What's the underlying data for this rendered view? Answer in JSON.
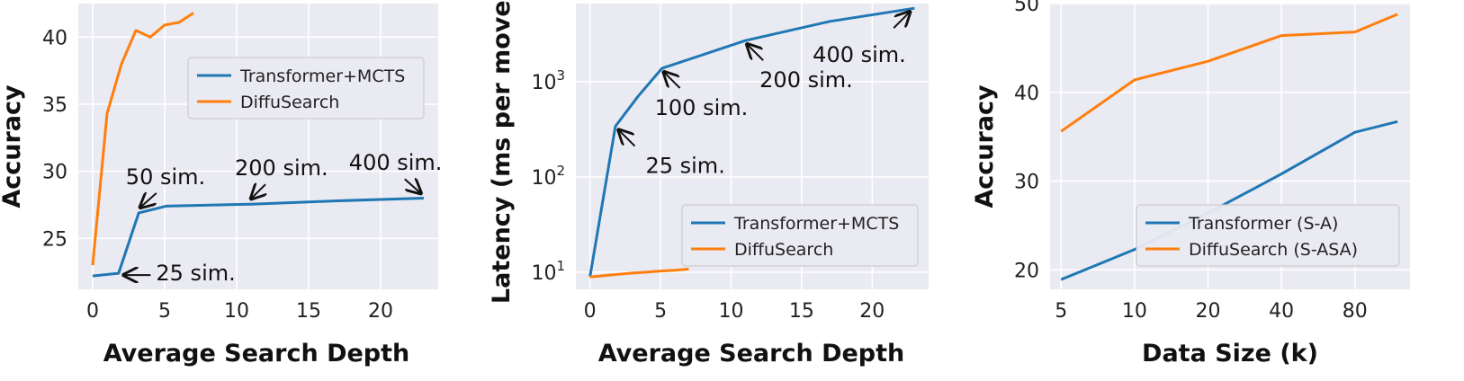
{
  "colors": {
    "blue": "#1f77b4",
    "orange": "#ff7f0e"
  },
  "chart_data": [
    {
      "type": "line",
      "xlabel": "Average Search Depth",
      "ylabel": "Accuracy",
      "xlim": [
        -1,
        24
      ],
      "ylim": [
        21.2,
        42.5
      ],
      "grid": true,
      "legend_position": "upper-right",
      "xticks": [
        0,
        5,
        10,
        15,
        20
      ],
      "yticks": [
        25,
        30,
        35,
        40
      ],
      "series": [
        {
          "name": "Transformer+MCTS",
          "color": "blue",
          "x": [
            0,
            1.8,
            3.2,
            5.1,
            11,
            17,
            23
          ],
          "y": [
            22.2,
            22.4,
            26.9,
            27.4,
            27.55,
            27.8,
            28.0
          ]
        },
        {
          "name": "DiffuSearch",
          "color": "orange",
          "x": [
            0,
            1,
            2,
            3,
            4,
            5,
            6,
            7
          ],
          "y": [
            23.0,
            34.3,
            38.0,
            40.5,
            40.0,
            40.9,
            41.1,
            41.8
          ]
        }
      ],
      "annotations": [
        {
          "text": "50 sim.",
          "x": 3.3,
          "y": 26.9
        },
        {
          "text": "200 sim.",
          "x": 11,
          "y": 27.55
        },
        {
          "text": "400 sim.",
          "x": 22.8,
          "y": 27.95
        },
        {
          "text": "25 sim.",
          "x": 1.9,
          "y": 22.4
        }
      ]
    },
    {
      "type": "line",
      "xlabel": "Average Search Depth",
      "ylabel": "Latency (ms per move)",
      "xlim": [
        -1,
        24
      ],
      "ylim_log10": [
        0.82,
        3.82
      ],
      "log_y": true,
      "grid": true,
      "legend_position": "lower-right",
      "xticks": [
        0,
        5,
        10,
        15,
        20
      ],
      "yticks": [
        10,
        100,
        1000
      ],
      "ytick_labels": [
        {
          "base": "10",
          "exp": "1"
        },
        {
          "base": "10",
          "exp": "2"
        },
        {
          "base": "10",
          "exp": "3"
        }
      ],
      "series": [
        {
          "name": "Transformer+MCTS",
          "color": "blue",
          "x": [
            0,
            1.8,
            3.4,
            5.1,
            11,
            17,
            23
          ],
          "y": [
            9,
            340,
            700,
            1380,
            2700,
            4300,
            5900
          ]
        },
        {
          "name": "DiffuSearch",
          "color": "orange",
          "x": [
            0,
            1,
            2,
            3,
            4,
            5,
            6,
            7
          ],
          "y": [
            8.9,
            9.2,
            9.5,
            9.8,
            10.0,
            10.3,
            10.5,
            10.8
          ]
        }
      ],
      "annotations": [
        {
          "text": "25 sim.",
          "x": 1.9,
          "y": 340
        },
        {
          "text": "100 sim.",
          "x": 5.1,
          "y": 1380
        },
        {
          "text": "200 sim.",
          "x": 11,
          "y": 2700
        },
        {
          "text": "400 sim.",
          "x": 22.8,
          "y": 5900
        }
      ]
    },
    {
      "type": "line",
      "xlabel": "Data Size (k)",
      "ylabel": "Accuracy",
      "xlim": [
        -0.15,
        4.75
      ],
      "ylim": [
        17.8,
        50.0
      ],
      "grid": true,
      "legend_position": "lower-right",
      "categories": [
        "5",
        "10",
        "20",
        "40",
        "80"
      ],
      "xticks_positions": [
        0,
        1,
        2,
        3,
        4
      ],
      "yticks": [
        20,
        30,
        40,
        50
      ],
      "series": [
        {
          "name": "Transformer (S-A)",
          "color": "blue",
          "x": [
            0,
            1,
            2,
            3,
            4,
            4.58
          ],
          "y": [
            18.9,
            22.3,
            26.4,
            30.8,
            35.5,
            36.7
          ]
        },
        {
          "name": "DiffuSearch (S-ASA)",
          "color": "orange",
          "x": [
            0,
            1,
            2,
            3,
            4,
            4.58
          ],
          "y": [
            35.6,
            41.4,
            43.5,
            46.4,
            46.8,
            48.8
          ]
        }
      ]
    }
  ]
}
